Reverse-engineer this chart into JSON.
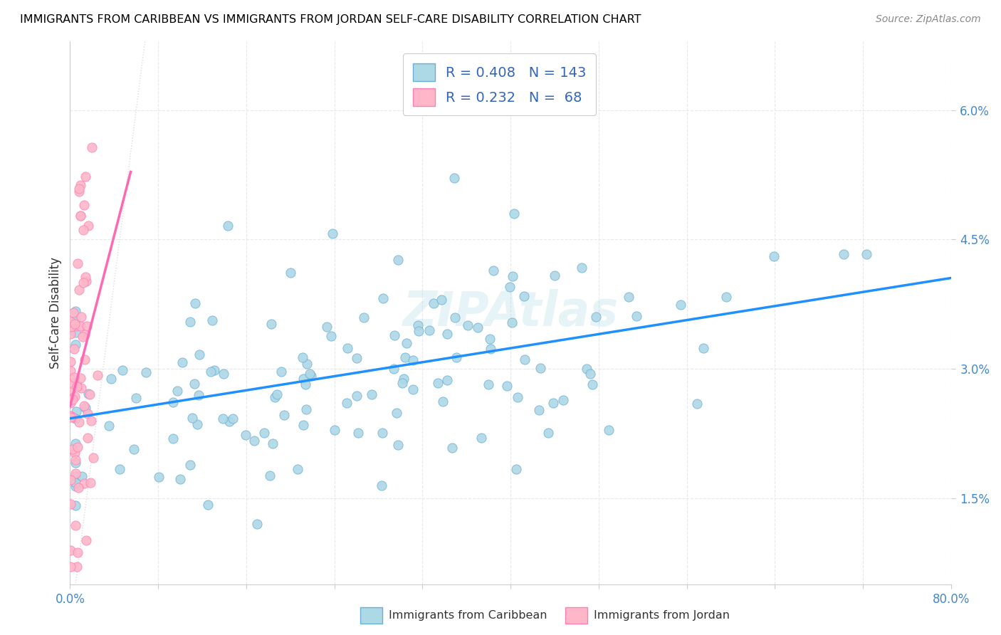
{
  "title": "IMMIGRANTS FROM CARIBBEAN VS IMMIGRANTS FROM JORDAN SELF-CARE DISABILITY CORRELATION CHART",
  "source": "Source: ZipAtlas.com",
  "ylabel": "Self-Care Disability",
  "yticks_labels": [
    "1.5%",
    "3.0%",
    "4.5%",
    "6.0%"
  ],
  "ytick_vals": [
    0.015,
    0.03,
    0.045,
    0.06
  ],
  "xlim": [
    0.0,
    0.8
  ],
  "ylim": [
    0.005,
    0.068
  ],
  "blue_R": 0.408,
  "blue_N": 143,
  "pink_R": 0.232,
  "pink_N": 68,
  "blue_fill": "#ADD8E6",
  "pink_fill": "#FFB6C8",
  "blue_edge": "#6BAED6",
  "pink_edge": "#FF7EB3",
  "blue_line": "#1E90FF",
  "pink_line": "#FF69B4",
  "diagonal_color": "#D8D8D8",
  "watermark": "ZIPAtlas",
  "legend_label_blue": "Immigrants from Caribbean",
  "legend_label_pink": "Immigrants from Jordan",
  "blue_seed": 12,
  "pink_seed": 7,
  "grid_color": "#E8E8E8",
  "xtick_minor_count": 9
}
